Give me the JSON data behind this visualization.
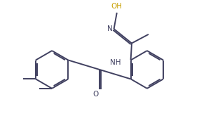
{
  "bg_color": "#ffffff",
  "bond_color": "#404060",
  "oh_color": "#c8a000",
  "n_color": "#404060",
  "lw": 1.4,
  "dbo": 0.07,
  "r": 0.95,
  "xlim": [
    -0.5,
    9.5
  ],
  "ylim": [
    0.2,
    6.2
  ],
  "fs": 7.5
}
